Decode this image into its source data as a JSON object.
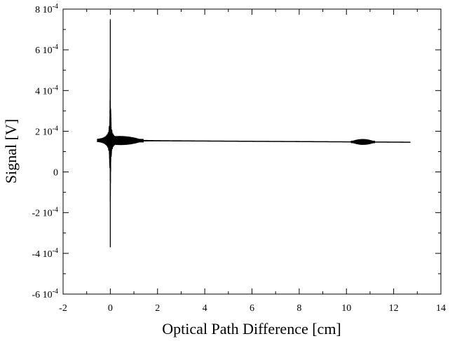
{
  "chart_data": {
    "type": "line",
    "title": "",
    "xlabel": "Optical Path Difference [cm]",
    "ylabel": "Signal [V]",
    "xlim": [
      -2,
      14
    ],
    "ylim": [
      -0.0006,
      0.0008
    ],
    "x_ticks": [
      -2,
      0,
      2,
      4,
      6,
      8,
      10,
      12,
      14
    ],
    "x_tick_labels": [
      "-2",
      "0",
      "2",
      "4",
      "6",
      "8",
      "10",
      "12",
      "14"
    ],
    "y_ticks": [
      0.0008,
      0.0006,
      0.0004,
      0.0002,
      0,
      -0.0002,
      -0.0004,
      -0.0006
    ],
    "y_tick_labels": [
      {
        "mant": "8 10",
        "exp": "-4"
      },
      {
        "mant": "6 10",
        "exp": "-4"
      },
      {
        "mant": "4 10",
        "exp": "-4"
      },
      {
        "mant": "2 10",
        "exp": "-4"
      },
      {
        "mant": "0",
        "exp": ""
      },
      {
        "mant": "-2 10",
        "exp": "-4"
      },
      {
        "mant": "-4 10",
        "exp": "-4"
      },
      {
        "mant": "-6 10",
        "exp": "-4"
      }
    ],
    "grid": false,
    "legend": "none",
    "line_color": "#000000",
    "series": [
      {
        "x_range": [
          -0.55,
          12.7
        ],
        "baseline_start": 0.000155,
        "baseline_end": 0.000146,
        "centerburst": {
          "x": 0,
          "max": 0.00075,
          "min": -0.00037
        },
        "features": [
          {
            "x_from": -0.55,
            "x_to": 1.4,
            "amplitude": 2e-05
          },
          {
            "x_from": 10.2,
            "x_to": 11.2,
            "amplitude": 1.2e-05
          }
        ]
      }
    ]
  }
}
